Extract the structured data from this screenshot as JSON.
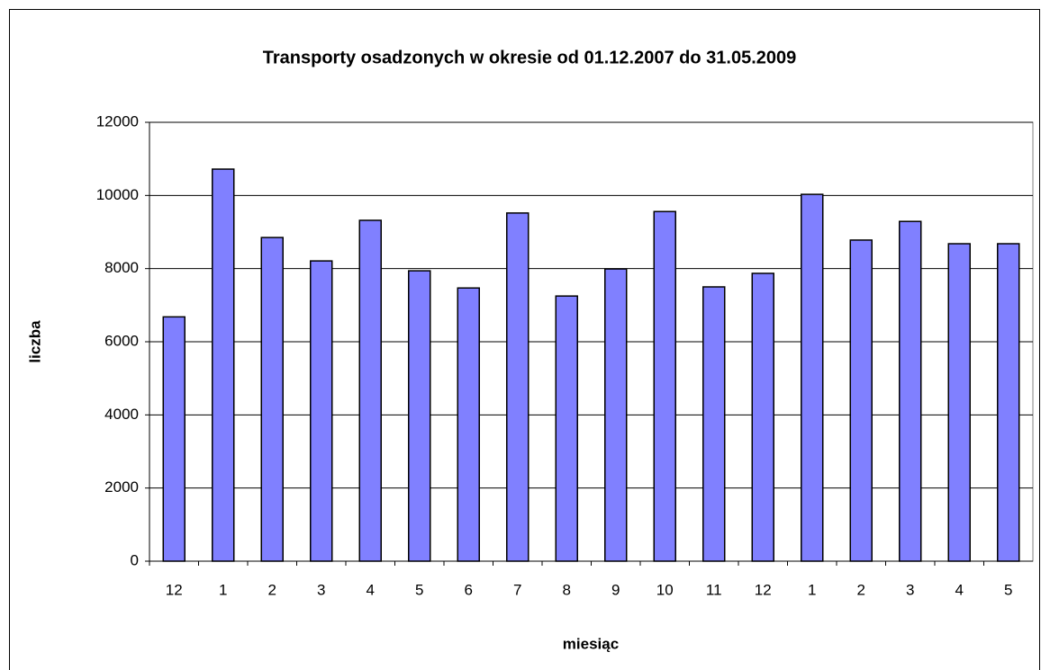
{
  "chart_data": {
    "type": "bar",
    "title": "Transporty osadzonych w okresie od 01.12.2007 do 31.05.2009",
    "x_label": "miesiąc",
    "y_label": "liczba",
    "categories": [
      "12",
      "1",
      "2",
      "3",
      "4",
      "5",
      "6",
      "7",
      "8",
      "9",
      "10",
      "11",
      "12",
      "1",
      "2",
      "3",
      "4",
      "5"
    ],
    "values": [
      6680,
      10720,
      8850,
      8210,
      9320,
      7940,
      7470,
      9520,
      7250,
      7990,
      9560,
      7500,
      7870,
      10030,
      8780,
      9290,
      8680,
      8680
    ],
    "color": "#8080ff",
    "ylim": [
      0,
      12000
    ],
    "yticks": [
      0,
      2000,
      4000,
      6000,
      8000,
      10000,
      12000
    ],
    "grid": true
  }
}
